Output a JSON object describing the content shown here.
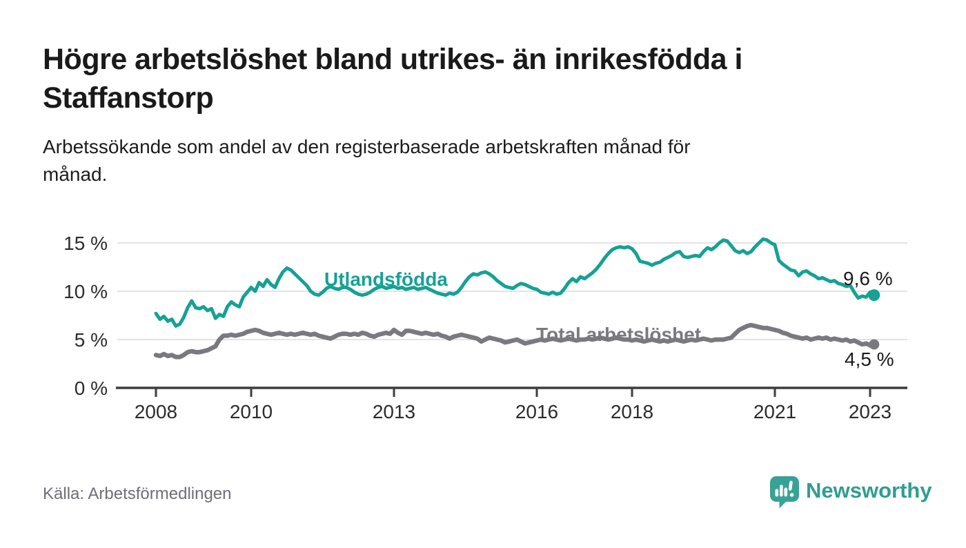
{
  "header": {
    "title_lines": [
      "Högre arbetslöshet bland utrikes- än inrikesfödda i",
      "Staffanstorp"
    ],
    "subtitle_lines": [
      "Arbetssökande som andel av den registerbaserade arbetskraften månad för",
      "månad."
    ]
  },
  "footer": {
    "source": "Källa: Arbetsförmedlingen",
    "brand": {
      "name": "Newsworthy",
      "icon": "newsworthy-speech-bubble-bar-chart-icon",
      "color": "#2f9d92",
      "icon_color": "#38a296"
    }
  },
  "chart_data": {
    "type": "line",
    "x_unit": "month",
    "x_start": "2008-01",
    "x_end": "2023-02",
    "x_tick_years": [
      2008,
      2010,
      2013,
      2016,
      2018,
      2021,
      2023
    ],
    "x_tick_labels": [
      "2008",
      "2010",
      "2013",
      "2016",
      "2018",
      "2021",
      "2023"
    ],
    "y_tick_values": [
      0,
      5,
      10,
      15
    ],
    "y_tick_labels": [
      "0 %",
      "5 %",
      "10 %",
      "15 %"
    ],
    "ylim": [
      0,
      16.5
    ],
    "grid": "horizontal",
    "grid_color": "#dadada",
    "axis_color": "#3d3d3d",
    "series": [
      {
        "name": "Utlandsfödda",
        "color": "#16a195",
        "end_label": "9,6 %",
        "last_value": 9.6,
        "values": [
          7.7,
          7.1,
          7.4,
          6.9,
          7.1,
          6.4,
          6.6,
          7.3,
          8.3,
          9.0,
          8.3,
          8.2,
          8.4,
          8.0,
          8.2,
          7.2,
          7.6,
          7.4,
          8.4,
          8.9,
          8.6,
          8.4,
          9.4,
          9.9,
          10.4,
          10.0,
          10.9,
          10.5,
          11.2,
          10.7,
          10.4,
          11.3,
          12.0,
          12.4,
          12.2,
          11.8,
          11.4,
          11.0,
          10.6,
          10.0,
          9.7,
          9.6,
          9.9,
          10.3,
          10.5,
          10.3,
          10.2,
          10.4,
          10.4,
          10.2,
          9.9,
          9.7,
          9.6,
          9.7,
          9.9,
          10.2,
          10.4,
          10.5,
          10.3,
          10.4,
          10.5,
          10.3,
          10.4,
          10.2,
          10.3,
          10.4,
          10.2,
          10.3,
          10.4,
          10.2,
          10.0,
          9.8,
          9.7,
          9.6,
          9.8,
          9.7,
          9.9,
          10.4,
          11.0,
          11.5,
          11.8,
          11.7,
          11.9,
          12.0,
          11.8,
          11.5,
          11.1,
          10.8,
          10.5,
          10.4,
          10.3,
          10.6,
          10.8,
          10.7,
          10.5,
          10.3,
          10.2,
          9.9,
          9.8,
          9.7,
          9.9,
          9.7,
          9.8,
          10.3,
          10.9,
          11.3,
          11.0,
          11.5,
          11.3,
          11.6,
          11.9,
          12.3,
          12.8,
          13.4,
          13.9,
          14.3,
          14.5,
          14.6,
          14.5,
          14.6,
          14.4,
          13.9,
          13.1,
          13.0,
          12.9,
          12.7,
          12.9,
          13.0,
          13.3,
          13.5,
          13.7,
          14.0,
          14.1,
          13.6,
          13.5,
          13.6,
          13.7,
          13.6,
          14.1,
          14.5,
          14.3,
          14.6,
          15.0,
          15.3,
          15.2,
          14.7,
          14.2,
          14.0,
          14.2,
          13.9,
          14.1,
          14.6,
          15.0,
          15.4,
          15.3,
          15.0,
          14.8,
          13.2,
          12.8,
          12.5,
          12.2,
          12.1,
          11.6,
          12.0,
          12.1,
          11.8,
          11.6,
          11.3,
          11.4,
          11.2,
          11.0,
          11.1,
          10.8,
          10.7,
          10.5,
          10.6,
          9.9,
          9.3,
          9.5,
          9.4,
          9.9,
          9.6
        ]
      },
      {
        "name": "Total arbetslöshet",
        "color": "#7a797f",
        "end_label": "4,5 %",
        "last_value": 4.5,
        "values": [
          3.4,
          3.3,
          3.5,
          3.3,
          3.4,
          3.2,
          3.2,
          3.4,
          3.7,
          3.8,
          3.7,
          3.7,
          3.8,
          3.9,
          4.1,
          4.3,
          5.0,
          5.4,
          5.4,
          5.5,
          5.4,
          5.5,
          5.6,
          5.8,
          5.9,
          6.0,
          5.9,
          5.7,
          5.6,
          5.5,
          5.6,
          5.7,
          5.6,
          5.5,
          5.6,
          5.5,
          5.6,
          5.7,
          5.6,
          5.5,
          5.6,
          5.4,
          5.3,
          5.2,
          5.1,
          5.3,
          5.5,
          5.6,
          5.6,
          5.5,
          5.6,
          5.5,
          5.7,
          5.6,
          5.4,
          5.3,
          5.5,
          5.6,
          5.7,
          5.6,
          6.0,
          5.7,
          5.5,
          5.9,
          5.9,
          5.8,
          5.7,
          5.6,
          5.7,
          5.6,
          5.5,
          5.6,
          5.4,
          5.3,
          5.1,
          5.3,
          5.4,
          5.5,
          5.4,
          5.3,
          5.2,
          5.1,
          4.8,
          5.0,
          5.2,
          5.1,
          5.0,
          4.9,
          4.7,
          4.8,
          4.9,
          5.0,
          4.8,
          4.6,
          4.7,
          4.8,
          4.9,
          5.0,
          4.9,
          5.0,
          5.1,
          5.0,
          4.9,
          5.0,
          5.1,
          5.0,
          4.9,
          5.0,
          5.0,
          5.1,
          5.0,
          5.1,
          5.2,
          5.1,
          5.0,
          5.1,
          5.2,
          5.1,
          5.0,
          5.0,
          4.9,
          5.0,
          4.9,
          4.8,
          4.9,
          5.0,
          4.9,
          4.8,
          4.9,
          4.8,
          4.9,
          5.0,
          4.9,
          4.8,
          4.9,
          5.0,
          4.9,
          5.0,
          5.1,
          5.0,
          4.9,
          5.0,
          5.0,
          5.0,
          5.1,
          5.2,
          5.6,
          6.0,
          6.2,
          6.4,
          6.5,
          6.4,
          6.3,
          6.2,
          6.2,
          6.1,
          6.0,
          5.9,
          5.7,
          5.6,
          5.4,
          5.3,
          5.2,
          5.1,
          5.2,
          5.0,
          5.1,
          5.2,
          5.1,
          5.2,
          5.0,
          5.1,
          5.0,
          4.9,
          5.0,
          4.8,
          4.9,
          4.7,
          4.5,
          4.6,
          4.4,
          4.5
        ]
      }
    ]
  }
}
